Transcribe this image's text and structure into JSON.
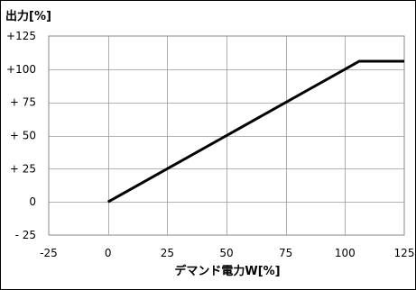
{
  "chart_data": {
    "type": "line",
    "ylabel": "出力[%]",
    "xlabel": "デマンド電力W[%]",
    "xlim": [
      -25,
      125
    ],
    "ylim": [
      -25,
      125
    ],
    "x_ticks": [
      -25,
      0,
      25,
      50,
      75,
      100,
      125
    ],
    "x_tick_labels": [
      "-25",
      "0",
      "25",
      "50",
      "75",
      "100",
      "125"
    ],
    "y_ticks": [
      125,
      100,
      75,
      50,
      25,
      0,
      -25
    ],
    "y_tick_labels": [
      "+125",
      "+100",
      "+ 75",
      "+ 50",
      "+ 25",
      "0",
      "- 25"
    ],
    "grid": true,
    "series": [
      {
        "x": [
          0,
          106,
          125
        ],
        "y": [
          0,
          106,
          106
        ],
        "color": "#000000"
      }
    ]
  }
}
